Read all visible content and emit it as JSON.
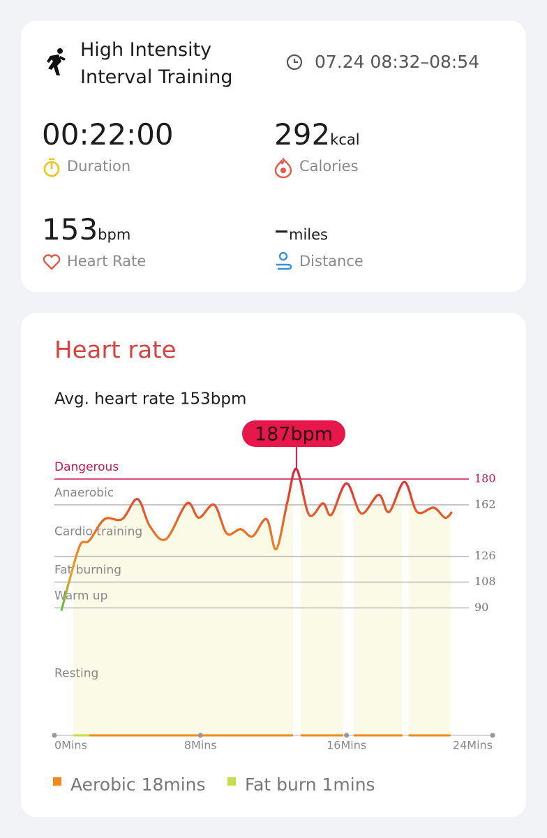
{
  "workout": {
    "title": "High Intensity Interval Training",
    "time": "07.24 08:32–08:54"
  },
  "stats": [
    {
      "value": "00:22:00",
      "label": "Duration"
    },
    {
      "value": "292",
      "unit": "kcal",
      "label": "Calories"
    },
    {
      "value": "153",
      "unit": "bpm",
      "label": "Heart Rate"
    },
    {
      "value": "–",
      "unit": "miles",
      "label": "Distance"
    }
  ],
  "chart_data": {
    "type": "line",
    "title": "Heart rate",
    "subtitle": "Avg. heart rate 153bpm",
    "x": [
      0.38,
      0.84,
      1.41,
      1.91,
      2.75,
      3.71,
      4.55,
      5.23,
      6.11,
      7.26,
      7.91,
      8.75,
      9.44,
      10.2,
      10.85,
      11.62,
      12.15,
      12.76,
      13.26,
      13.95,
      14.71,
      15.17,
      16.0,
      16.81,
      17.76,
      18.33,
      19.17,
      19.87,
      20.78,
      21.39,
      21.78
    ],
    "values": [
      88,
      110,
      134,
      137,
      152,
      152,
      166,
      147,
      138,
      163,
      153,
      162,
      142,
      145,
      140,
      152,
      131,
      164,
      187,
      155,
      163,
      155,
      177,
      156,
      169,
      157,
      178,
      157,
      160,
      153,
      157
    ],
    "peak": {
      "x": 13.26,
      "value": 187,
      "label": "187bpm"
    },
    "xlim": [
      0,
      24
    ],
    "xticks": [
      {
        "value": 0,
        "label": "0Mins"
      },
      {
        "value": 8,
        "label": "8Mins"
      },
      {
        "value": 16,
        "label": "16Mins"
      },
      {
        "value": 24,
        "label": "24Mins"
      }
    ],
    "ylim": [
      0,
      200
    ],
    "yticks": [
      90,
      108,
      126,
      162,
      180
    ],
    "zones": [
      "Dangerous",
      "Anaerobic",
      "Cardio training",
      "Fat burning",
      "Warm up",
      "Resting"
    ],
    "danger_color": "#c8194f",
    "series": [
      {
        "name": "Aerobic 18mins",
        "color": "#f08a1c",
        "segments": [
          [
            1.9,
            13.07
          ],
          [
            13.49,
            15.82
          ],
          [
            16.39,
            19.06
          ],
          [
            19.4,
            21.7
          ]
        ]
      },
      {
        "name": "Fat burn 1mins",
        "color": "#c9dc50",
        "segments": [
          [
            1.03,
            1.9
          ]
        ]
      }
    ]
  }
}
